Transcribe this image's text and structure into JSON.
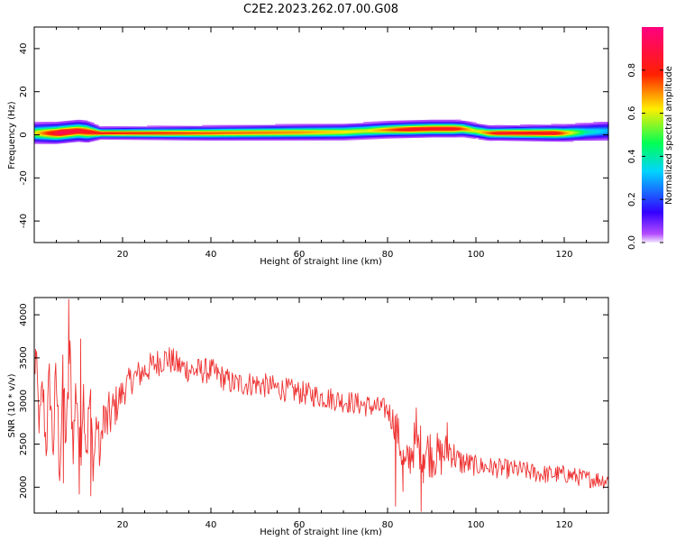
{
  "figure": {
    "title": "C2E2.2023.262.07.00.G08"
  },
  "chart_data": [
    {
      "type": "heatmap",
      "xlabel": "Height of straight line (km)",
      "ylabel": "Frequency (Hz)",
      "xlim": [
        0,
        130
      ],
      "ylim": [
        -50,
        50
      ],
      "x_ticks": [
        20,
        40,
        60,
        80,
        100,
        120
      ],
      "y_ticks": [
        -40,
        -20,
        0,
        20,
        40
      ],
      "grid": false,
      "colorbar": {
        "label": "Normalized spectral amplitude",
        "range": [
          0,
          1
        ],
        "ticks": [
          0.0,
          0.2,
          0.4,
          0.6,
          0.8
        ],
        "tick_labels": [
          "0.0",
          "0.2",
          "0.4",
          "0.6",
          "0.8"
        ],
        "colormap": "gist_rainbow (purple → blue → cyan → green → yellow → red → magenta)"
      },
      "band": {
        "description": "Narrow spectral line near 0–3 Hz across all heights",
        "center_hz_at_x": [
          [
            0,
            1
          ],
          [
            5,
            1
          ],
          [
            10,
            2
          ],
          [
            15,
            1
          ],
          [
            40,
            1
          ],
          [
            70,
            1.5
          ],
          [
            80,
            2.5
          ],
          [
            90,
            3
          ],
          [
            97,
            3
          ],
          [
            103,
            1
          ],
          [
            120,
            1
          ],
          [
            130,
            2
          ]
        ],
        "half_width_hz": [
          [
            0,
            4
          ],
          [
            12,
            4
          ],
          [
            15,
            2
          ],
          [
            40,
            2.5
          ],
          [
            75,
            3
          ],
          [
            95,
            3
          ],
          [
            105,
            2.5
          ],
          [
            120,
            3
          ],
          [
            130,
            4
          ]
        ],
        "peak_amplitude_at_x": [
          [
            0,
            0.6
          ],
          [
            6,
            0.95
          ],
          [
            9,
            0.9
          ],
          [
            12,
            0.85
          ],
          [
            20,
            0.8
          ],
          [
            40,
            0.75
          ],
          [
            60,
            0.7
          ],
          [
            75,
            0.6
          ],
          [
            85,
            0.85
          ],
          [
            95,
            0.85
          ],
          [
            100,
            0.6
          ],
          [
            105,
            0.85
          ],
          [
            118,
            0.85
          ],
          [
            125,
            0.4
          ],
          [
            130,
            0.3
          ]
        ]
      }
    },
    {
      "type": "line",
      "xlabel": "Height of straight line (km)",
      "ylabel": "SNR (10 * v/v)",
      "xlim": [
        0,
        130
      ],
      "ylim": [
        1700,
        4200
      ],
      "x_ticks": [
        20,
        40,
        60,
        80,
        100,
        120
      ],
      "y_ticks": [
        2000,
        2500,
        3000,
        3500,
        4000
      ],
      "grid": false,
      "series": [
        {
          "color": "#ee3333",
          "trend_x": [
            0,
            2,
            4,
            6,
            8,
            10,
            12,
            14,
            16,
            18,
            20,
            22,
            25,
            28,
            30,
            33,
            36,
            40,
            45,
            50,
            55,
            60,
            65,
            70,
            75,
            80,
            82,
            84,
            86,
            88,
            90,
            92,
            94,
            96,
            100,
            105,
            110,
            115,
            120,
            125,
            130
          ],
          "trend_y": [
            3300,
            2800,
            2900,
            2700,
            3100,
            2700,
            2800,
            2500,
            2700,
            2900,
            3100,
            3250,
            3350,
            3450,
            3500,
            3400,
            3350,
            3350,
            3200,
            3200,
            3150,
            3100,
            3050,
            3000,
            2950,
            2900,
            2700,
            2200,
            2500,
            2450,
            2400,
            2350,
            2450,
            2300,
            2250,
            2220,
            2200,
            2150,
            2150,
            2100,
            2080
          ],
          "noise_x": [
            0,
            5,
            10,
            15,
            20,
            40,
            80,
            83,
            90,
            95,
            100,
            130
          ],
          "noise_amp": [
            350,
            650,
            600,
            400,
            180,
            150,
            130,
            250,
            300,
            180,
            120,
            100
          ],
          "spikes": [
            [
              7.8,
              4180
            ],
            [
              10.5,
              3720
            ],
            [
              12.8,
              1900
            ],
            [
              10.2,
              1920
            ],
            [
              6.6,
              2050
            ],
            [
              0.3,
              3600
            ],
            [
              81.8,
              1780
            ],
            [
              86.5,
              2920
            ],
            [
              87.6,
              1720
            ],
            [
              88.1,
              2050
            ],
            [
              83.5,
              1950
            ],
            [
              93.5,
              2750
            ]
          ]
        }
      ]
    }
  ]
}
